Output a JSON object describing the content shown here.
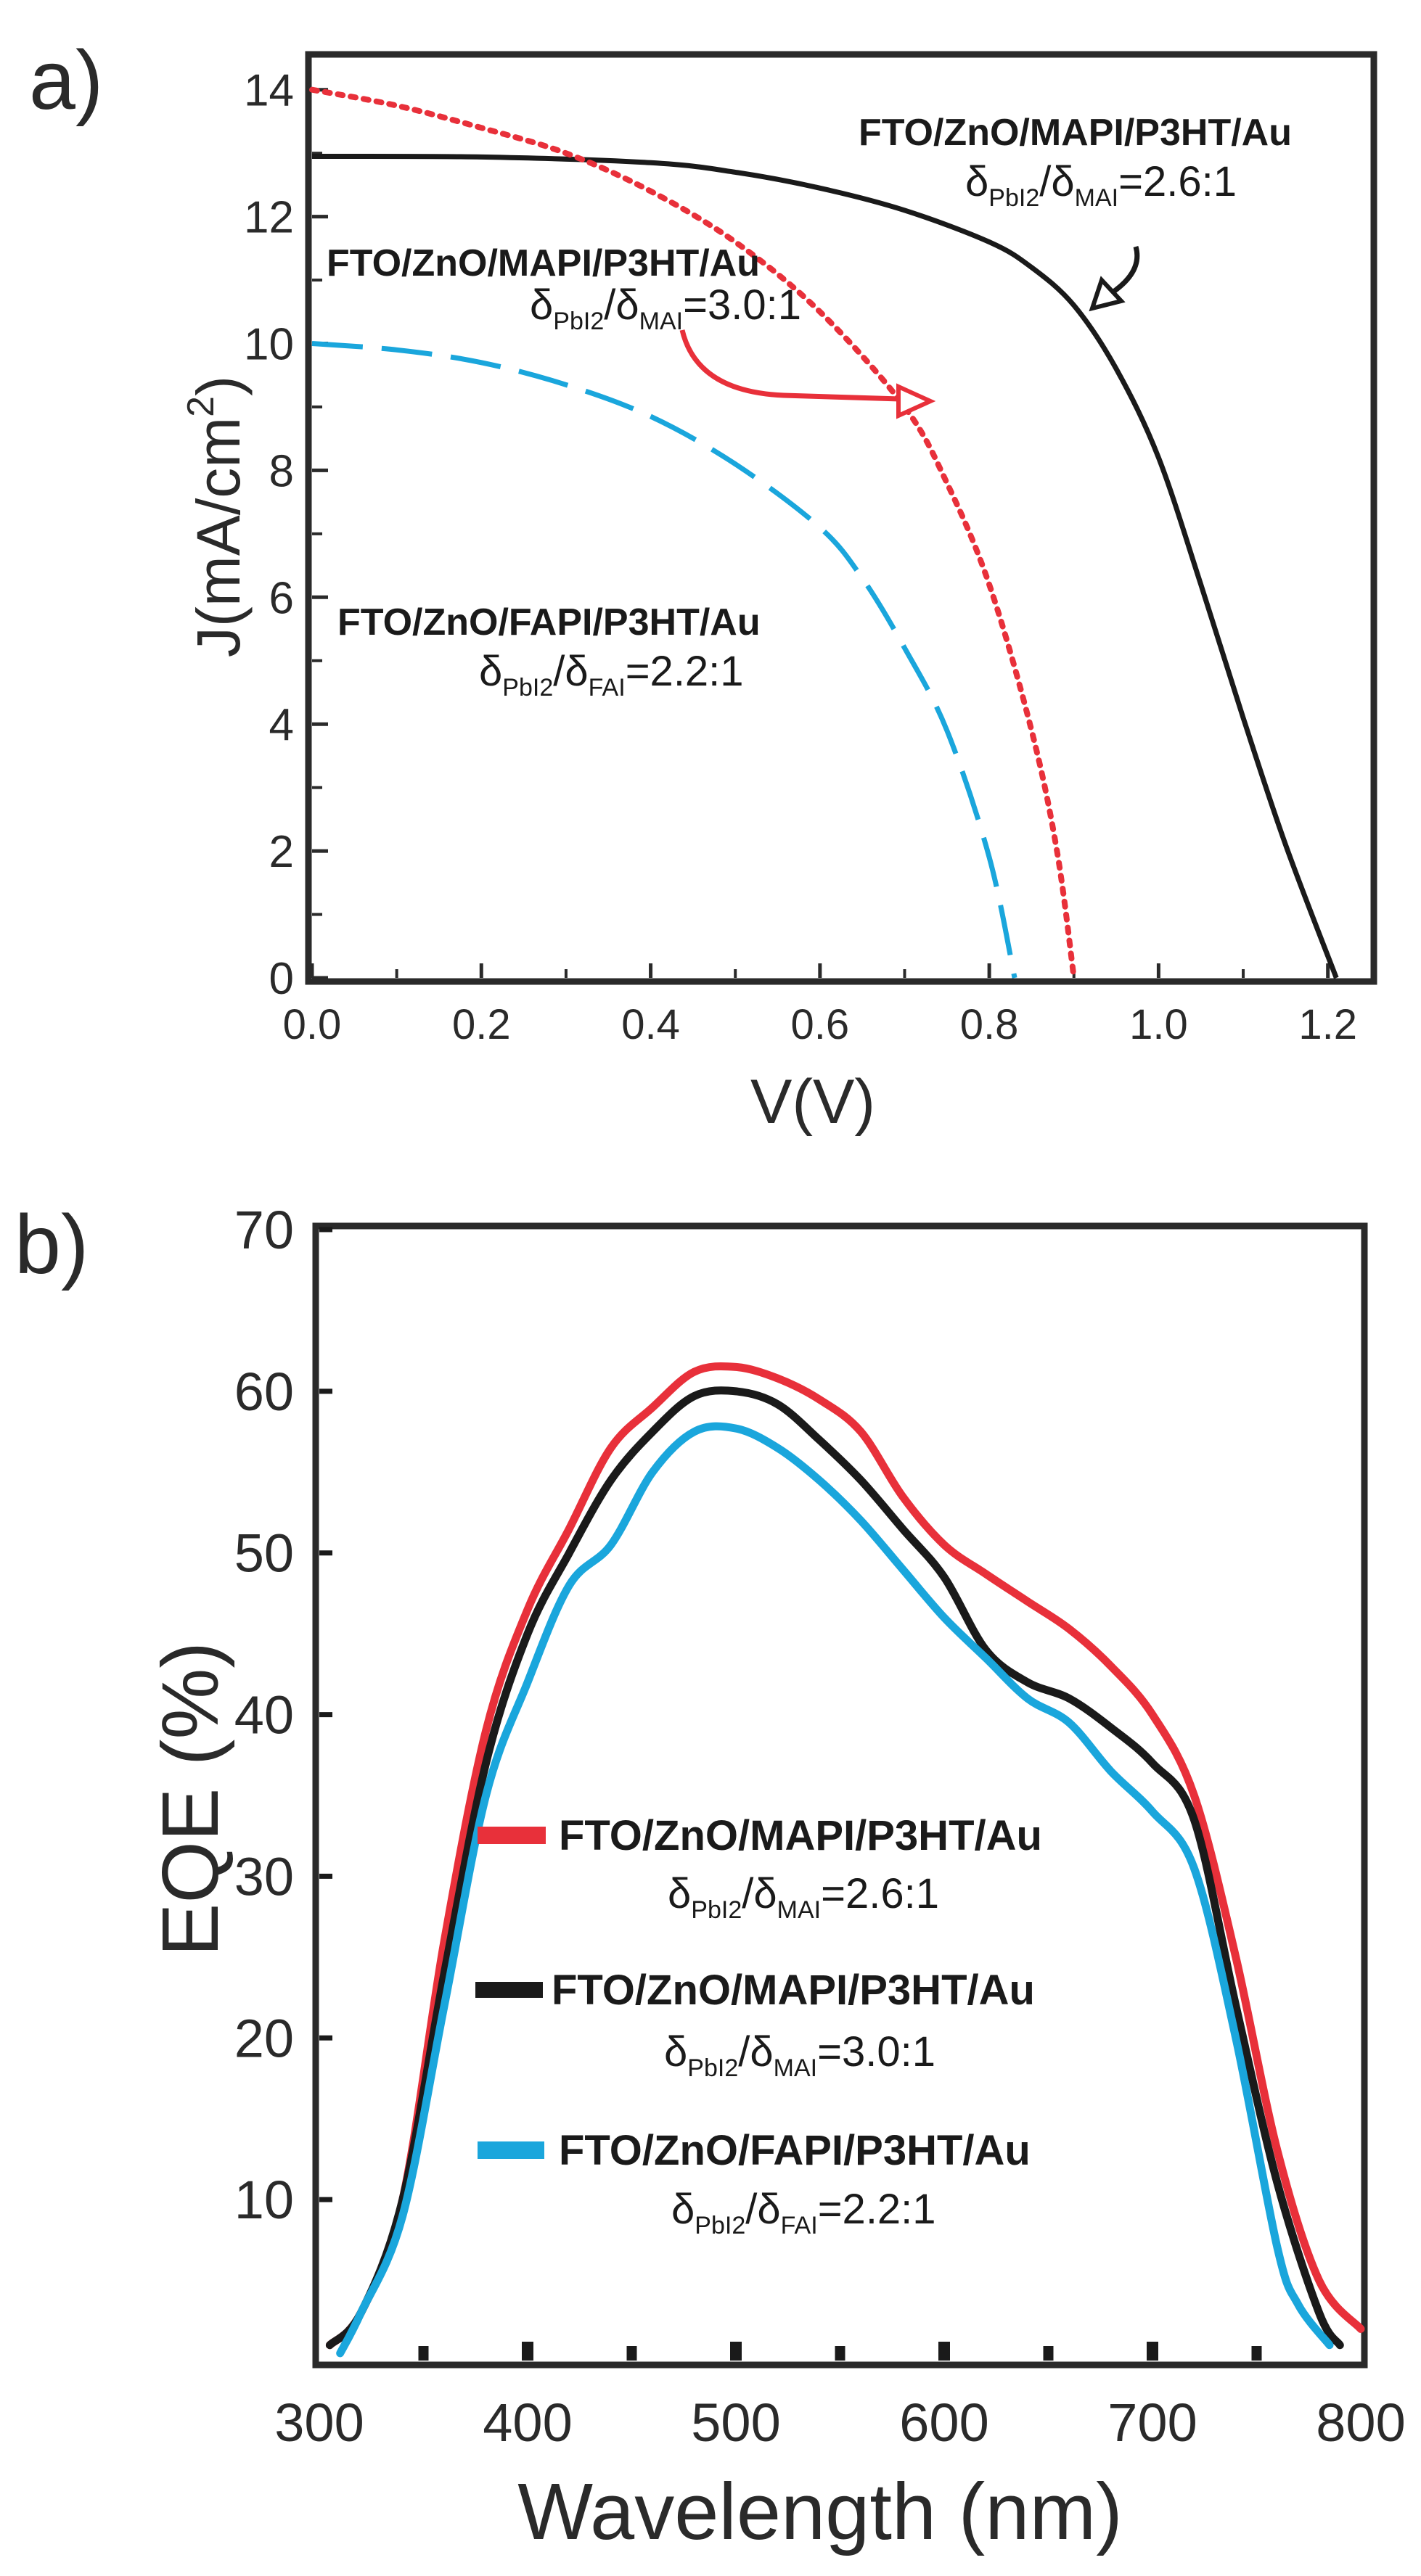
{
  "colors": {
    "red": "#e8303a",
    "black": "#1a1a1a",
    "blue": "#1aa6dc",
    "frame": "#2a2a2a"
  },
  "chart_data": [
    {
      "panel": "a)",
      "type": "line",
      "xlabel": "V(V)",
      "ylabel": "J(mA/cm",
      "ylabel_sup": "2",
      "ylabel_end": ")",
      "xlim": [
        0,
        1.25
      ],
      "ylim": [
        0,
        14.5
      ],
      "xticks": [
        0.0,
        0.2,
        0.4,
        0.6,
        0.8,
        1.0,
        1.2
      ],
      "xtick_labels": [
        "0.0",
        "0.2",
        "0.4",
        "0.6",
        "0.8",
        "1.0",
        "1.2"
      ],
      "yticks": [
        0,
        2,
        4,
        6,
        8,
        10,
        12,
        14
      ],
      "ytick_labels": [
        "0",
        "2",
        "4",
        "6",
        "8",
        "10",
        "12",
        "14"
      ],
      "series": [
        {
          "name": "FTO/ZnO/MAPI/P3HT/Au 2.6:1",
          "color": "black",
          "style": "solid",
          "x": [
            0,
            0.2,
            0.4,
            0.5,
            0.6,
            0.7,
            0.8,
            0.85,
            0.9,
            0.95,
            1.0,
            1.05,
            1.1,
            1.15,
            1.21
          ],
          "y": [
            12.95,
            12.94,
            12.85,
            12.7,
            12.45,
            12.1,
            11.6,
            11.2,
            10.6,
            9.6,
            8.2,
            6.2,
            4.1,
            2.1,
            0
          ]
        },
        {
          "name": "FTO/ZnO/MAPI/P3HT/Au 3.0:1",
          "color": "red",
          "style": "dotted",
          "x": [
            0,
            0.1,
            0.2,
            0.3,
            0.4,
            0.5,
            0.6,
            0.7,
            0.75,
            0.8,
            0.85,
            0.88,
            0.9
          ],
          "y": [
            14,
            13.75,
            13.4,
            13.0,
            12.4,
            11.6,
            10.5,
            9.0,
            7.8,
            6.2,
            3.9,
            2.0,
            0
          ]
        },
        {
          "name": "FTO/ZnO/FAPI/P3HT/Au 2.2:1",
          "color": "blue",
          "style": "dashed",
          "x": [
            0,
            0.1,
            0.2,
            0.3,
            0.4,
            0.5,
            0.6,
            0.65,
            0.7,
            0.75,
            0.8,
            0.83
          ],
          "y": [
            10,
            9.9,
            9.7,
            9.35,
            8.85,
            8.1,
            7.1,
            6.3,
            5.2,
            3.9,
            1.9,
            0
          ]
        }
      ],
      "annotations": [
        {
          "title": "FTO/ZnO/MAPI/P3HT/Au",
          "sub_a": "PbI2",
          "sub_b": "MAI",
          "ratio": "=2.6:1"
        },
        {
          "title": "FTO/ZnO/MAPI/P3HT/Au",
          "sub_a": "PbI2",
          "sub_b": "MAI",
          "ratio": "=3.0:1"
        },
        {
          "title": "FTO/ZnO/FAPI/P3HT/Au",
          "sub_a": "PbI2",
          "sub_b": "FAI",
          "ratio": "=2.2:1"
        }
      ]
    },
    {
      "panel": "b)",
      "type": "line",
      "xlabel": "Wavelength (nm)",
      "ylabel": "EQE (%)",
      "xlim": [
        300,
        800
      ],
      "ylim": [
        0,
        70
      ],
      "xticks": [
        300,
        400,
        500,
        600,
        700,
        800
      ],
      "xtick_labels": [
        "300",
        "400",
        "500",
        "600",
        "700",
        "800"
      ],
      "yticks": [
        10,
        20,
        30,
        40,
        50,
        60,
        70
      ],
      "ytick_labels": [
        "10",
        "20",
        "30",
        "40",
        "50",
        "60",
        "70"
      ],
      "series": [
        {
          "name": "FTO/ZnO/MAPI/P3HT/Au 2.6:1",
          "color": "red",
          "x": [
            305,
            320,
            340,
            360,
            380,
            400,
            420,
            440,
            460,
            480,
            500,
            520,
            540,
            560,
            580,
            600,
            620,
            640,
            660,
            680,
            700,
            720,
            740,
            760,
            780,
            800
          ],
          "y": [
            1,
            3,
            10,
            26,
            39,
            46.5,
            51.5,
            56.5,
            59,
            61.2,
            61.5,
            60.8,
            59.5,
            57.5,
            53.5,
            50.5,
            48.7,
            47,
            45.3,
            43,
            40,
            35,
            25,
            13,
            5,
            2
          ]
        },
        {
          "name": "FTO/ZnO/MAPI/P3HT/Au 3.0:1",
          "color": "black",
          "x": [
            305,
            320,
            340,
            360,
            380,
            400,
            420,
            440,
            460,
            480,
            500,
            520,
            540,
            560,
            580,
            600,
            620,
            640,
            660,
            680,
            700,
            720,
            740,
            760,
            780,
            790
          ],
          "y": [
            1,
            3,
            10,
            24,
            37,
            45,
            50,
            54.5,
            57.5,
            59.7,
            60,
            59.2,
            57,
            54.5,
            51.5,
            48.5,
            44,
            42,
            41,
            39.2,
            37,
            33.5,
            22,
            11,
            3,
            1
          ]
        },
        {
          "name": "FTO/ZnO/FAPI/P3HT/Au 2.2:1",
          "color": "blue",
          "x": [
            310,
            320,
            340,
            360,
            380,
            400,
            420,
            440,
            460,
            480,
            500,
            520,
            540,
            560,
            580,
            600,
            620,
            640,
            660,
            680,
            700,
            720,
            740,
            760,
            770,
            785
          ],
          "y": [
            0.5,
            3,
            9,
            22,
            35,
            42,
            48,
            50.5,
            55,
            57.5,
            57.7,
            56.5,
            54.5,
            52,
            49,
            46,
            43.5,
            41,
            39.5,
            36.5,
            34,
            30.5,
            20,
            7,
            3.5,
            1
          ]
        }
      ],
      "legend": [
        {
          "title": "FTO/ZnO/MAPI/P3HT/Au",
          "sub_a": "PbI2",
          "sub_b": "MAI",
          "ratio": "=2.6:1"
        },
        {
          "title": "FTO/ZnO/MAPI/P3HT/Au",
          "sub_a": "PbI2",
          "sub_b": "MAI",
          "ratio": "=3.0:1"
        },
        {
          "title": "FTO/ZnO/FAPI/P3HT/Au",
          "sub_a": "PbI2",
          "sub_b": "FAI",
          "ratio": "=2.2:1"
        }
      ]
    }
  ]
}
